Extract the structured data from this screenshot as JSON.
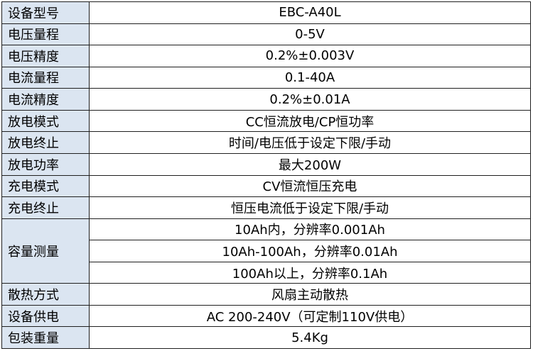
{
  "table": {
    "rows": [
      {
        "label": "设备型号",
        "values": [
          "EBC-A40L"
        ]
      },
      {
        "label": "电压量程",
        "values": [
          "0-5V"
        ]
      },
      {
        "label": "电压精度",
        "values": [
          "0.2%±0.003V"
        ]
      },
      {
        "label": "电流量程",
        "values": [
          "0.1-40A"
        ]
      },
      {
        "label": "电流精度",
        "values": [
          "0.2%±0.01A"
        ]
      },
      {
        "label": "放电模式",
        "values": [
          "CC恒流放电/CP恒功率"
        ]
      },
      {
        "label": "放电终止",
        "values": [
          "时间/电压低于设定下限/手动"
        ]
      },
      {
        "label": "放电功率",
        "values": [
          "最大200W"
        ]
      },
      {
        "label": "充电模式",
        "values": [
          "CV恒流恒压充电"
        ]
      },
      {
        "label": "充电终止",
        "values": [
          "恒压电流低于设定下限/手动"
        ]
      },
      {
        "label": "容量测量",
        "values": [
          "10Ah内，分辨率0.001Ah",
          "10Ah-100Ah，分辨率0.01Ah",
          "100Ah以上，分辨率0.1Ah"
        ]
      },
      {
        "label": "散热方式",
        "values": [
          "风扇主动散热"
        ]
      },
      {
        "label": "设备供电",
        "values": [
          "AC 200-240V（可定制110V供电）"
        ]
      },
      {
        "label": "包装重量",
        "values": [
          "5.4Kg"
        ]
      }
    ]
  }
}
